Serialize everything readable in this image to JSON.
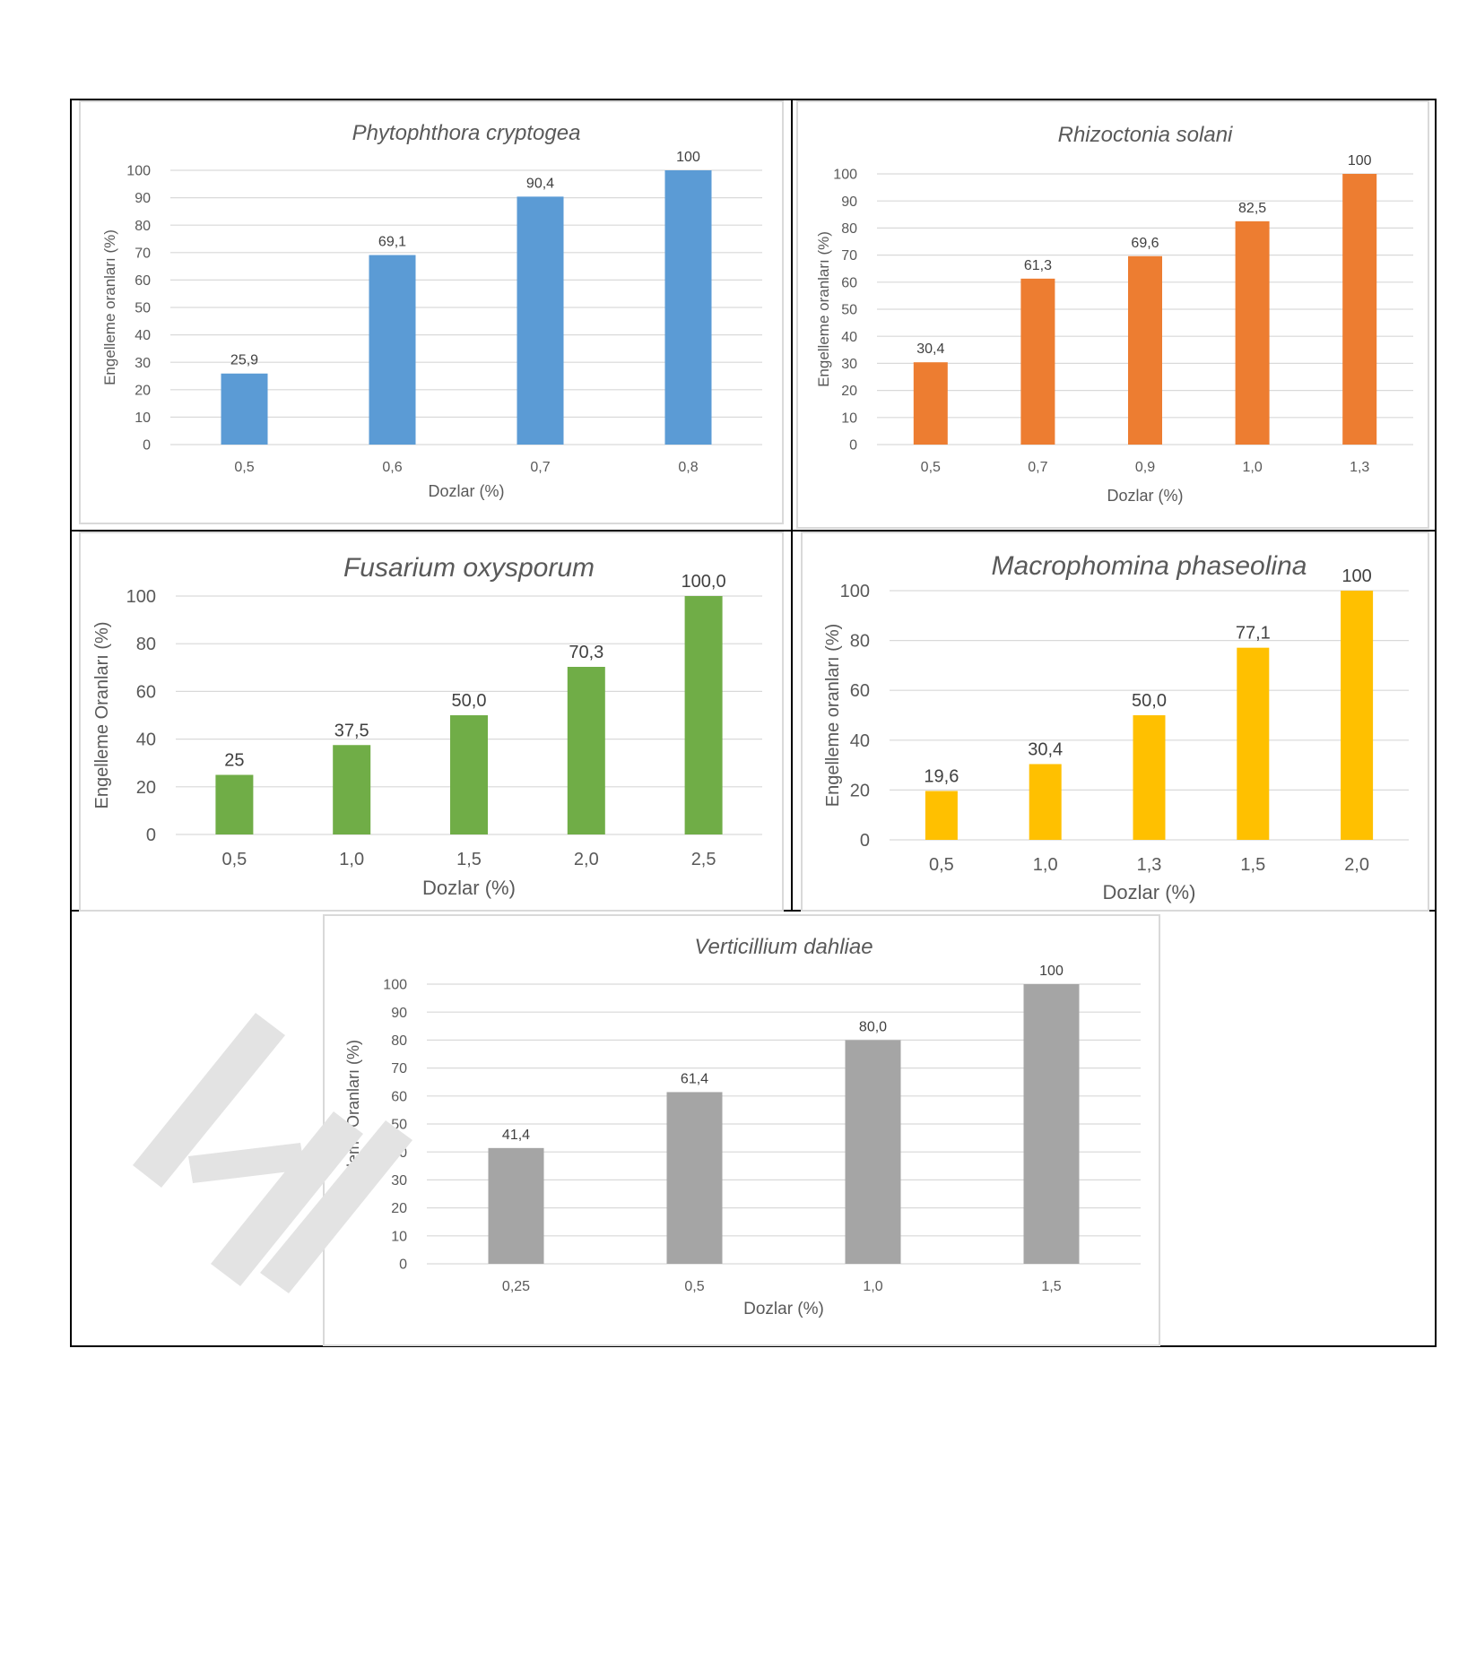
{
  "colors": {
    "blue": "#5b9bd5",
    "orange": "#ed7d31",
    "green": "#70ad47",
    "yellow": "#ffc000",
    "gray": "#a5a5a5",
    "grid": "#d9d9d9",
    "text": "#595959"
  },
  "chart_data": [
    {
      "type": "bar",
      "title": "Phytophthora cryptogea",
      "xlabel": "Dozlar (%)",
      "ylabel": "Engelleme oranları (%)",
      "categories": [
        "0,5",
        "0,6",
        "0,7",
        "0,8"
      ],
      "values": [
        25.9,
        69.1,
        90.4,
        100
      ],
      "value_labels": [
        "25,9",
        "69,1",
        "90,4",
        "100"
      ],
      "ylim": [
        0,
        100
      ],
      "yticks": [
        "0",
        "10",
        "20",
        "30",
        "40",
        "50",
        "60",
        "70",
        "80",
        "90",
        "100"
      ],
      "color": "#5b9bd5",
      "grid": true
    },
    {
      "type": "bar",
      "title": "Rhizoctonia solani",
      "xlabel": "Dozlar (%)",
      "ylabel": "Engelleme oranları (%)",
      "categories": [
        "0,5",
        "0,7",
        "0,9",
        "1,0",
        "1,3"
      ],
      "values": [
        30.4,
        61.3,
        69.6,
        82.5,
        100
      ],
      "value_labels": [
        "30,4",
        "61,3",
        "69,6",
        "82,5",
        "100"
      ],
      "ylim": [
        0,
        100
      ],
      "yticks": [
        "0",
        "10",
        "20",
        "30",
        "40",
        "50",
        "60",
        "70",
        "80",
        "90",
        "100"
      ],
      "color": "#ed7d31",
      "grid": true
    },
    {
      "type": "bar",
      "title": "Fusarium oxysporum",
      "xlabel": "Dozlar (%)",
      "ylabel": "Engelleme Oranları (%)",
      "categories": [
        "0,5",
        "1,0",
        "1,5",
        "2,0",
        "2,5"
      ],
      "values": [
        25,
        37.5,
        50.0,
        70.3,
        100.0
      ],
      "value_labels": [
        "25",
        "37,5",
        "50,0",
        "70,3",
        "100,0"
      ],
      "ylim": [
        0,
        100
      ],
      "yticks": [
        "0",
        "20",
        "40",
        "60",
        "80",
        "100"
      ],
      "color": "#70ad47",
      "grid": true
    },
    {
      "type": "bar",
      "title": "Macrophomina phaseolina",
      "xlabel": "Dozlar (%)",
      "ylabel": "Engelleme oranları (%)",
      "categories": [
        "0,5",
        "1,0",
        "1,3",
        "1,5",
        "2,0"
      ],
      "values": [
        19.6,
        30.4,
        50.0,
        77.1,
        100
      ],
      "value_labels": [
        "19,6",
        "30,4",
        "50,0",
        "77,1",
        "100"
      ],
      "ylim": [
        0,
        100
      ],
      "yticks": [
        "0",
        "20",
        "40",
        "60",
        "80",
        "100"
      ],
      "color": "#ffc000",
      "grid": true
    },
    {
      "type": "bar",
      "title": "Verticillium dahliae",
      "xlabel": "Dozlar (%)",
      "ylabel": "Engelleme Oranları (%)",
      "categories": [
        "0,25",
        "0,5",
        "1,0",
        "1,5"
      ],
      "values": [
        41.4,
        61.4,
        80.0,
        100
      ],
      "value_labels": [
        "41,4",
        "61,4",
        "80,0",
        "100"
      ],
      "ylim": [
        0,
        100
      ],
      "yticks": [
        "0",
        "10",
        "20",
        "30",
        "40",
        "50",
        "60",
        "70",
        "80",
        "90",
        "100"
      ],
      "color": "#a5a5a5",
      "grid": true
    }
  ]
}
